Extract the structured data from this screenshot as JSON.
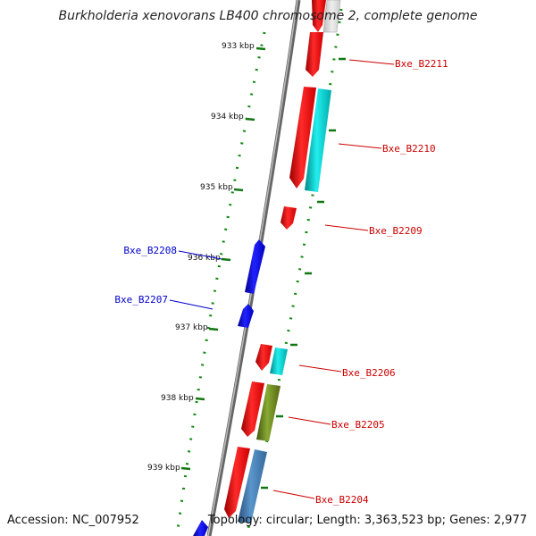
{
  "title": "Burkholderia xenovorans LB400 chromosome 2, complete genome",
  "footer": {
    "accession": "Accession: NC_007952",
    "summary": "Topology: circular; Length: 3,363,523 bp; Genes: 2,977"
  },
  "scale_labels": [
    "933 kbp",
    "934 kbp",
    "935 kbp",
    "936 kbp",
    "937 kbp",
    "938 kbp",
    "939 kbp"
  ],
  "gene_labels": {
    "right": [
      "Bxe_B2211",
      "Bxe_B2210",
      "Bxe_B2209",
      "Bxe_B2206",
      "Bxe_B2205",
      "Bxe_B2204"
    ],
    "left": [
      "Bxe_B2208",
      "Bxe_B2207"
    ]
  },
  "colors": {
    "forward_gene": "#ee1111",
    "reverse_gene": "#1111ee",
    "cds_cyan": "#11cccc",
    "cds_olive": "#779922",
    "cds_steel": "#4682b4",
    "label_right": "#cc0000",
    "label_left": "#0000cc",
    "scale_tick": "#117711",
    "backbone": "#888888"
  }
}
